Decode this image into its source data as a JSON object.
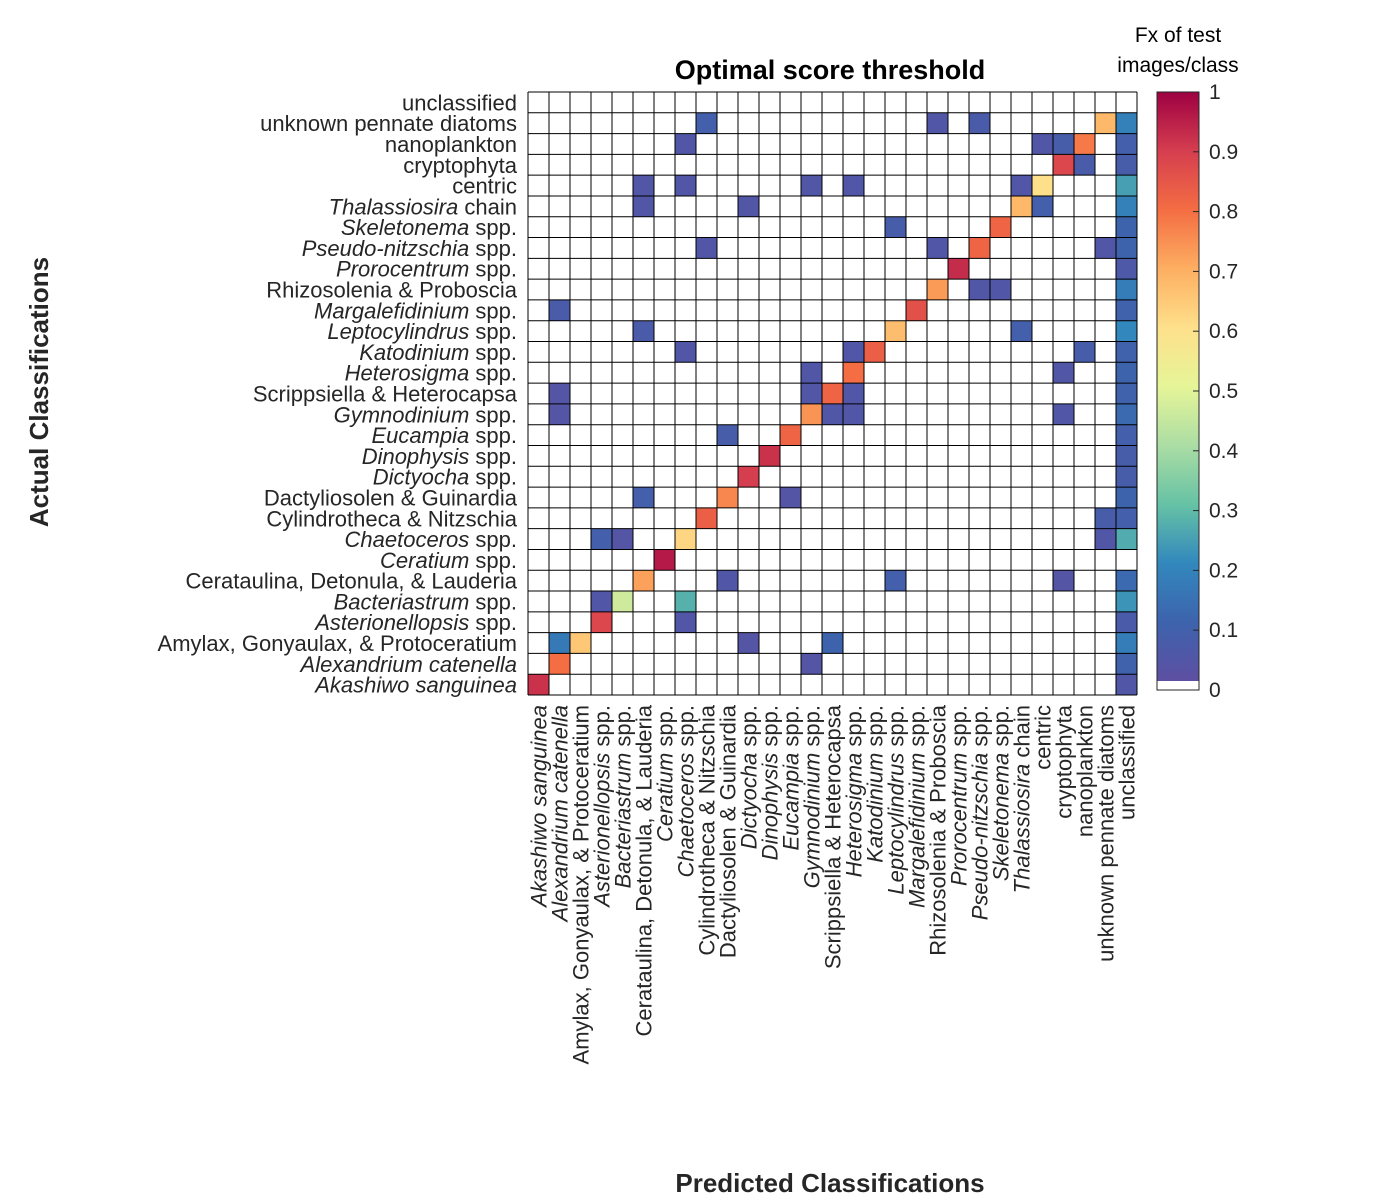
{
  "chart_data": {
    "type": "heatmap",
    "title": "Optimal score threshold",
    "xlabel": "Predicted Classifications",
    "ylabel": "Actual Classifications",
    "colorbar": {
      "title_lines": [
        "Fx of test",
        "images/class"
      ],
      "range": [
        0,
        1
      ],
      "ticks": [
        "0",
        "0.1",
        "0.2",
        "0.3",
        "0.4",
        "0.5",
        "0.6",
        "0.7",
        "0.8",
        "0.9",
        "1"
      ],
      "colormap": "spectral"
    },
    "classes": [
      {
        "pre": "",
        "it": "Akashiwo sanguinea",
        "post": ""
      },
      {
        "pre": "",
        "it": "Alexandrium catenella",
        "post": ""
      },
      {
        "pre": "Amylax, Gonyaulax, & Protoceratium",
        "it": "",
        "post": ""
      },
      {
        "pre": "",
        "it": "Asterionellopsis",
        "post": " spp."
      },
      {
        "pre": "",
        "it": "Bacteriastrum",
        "post": " spp."
      },
      {
        "pre": "Cerataulina, Detonula, & Lauderia",
        "it": "",
        "post": ""
      },
      {
        "pre": "",
        "it": "Ceratium",
        "post": " spp."
      },
      {
        "pre": "",
        "it": "Chaetoceros",
        "post": " spp."
      },
      {
        "pre": "Cylindrotheca & Nitzschia",
        "it": "",
        "post": ""
      },
      {
        "pre": "Dactyliosolen & Guinardia",
        "it": "",
        "post": ""
      },
      {
        "pre": "",
        "it": "Dictyocha",
        "post": " spp."
      },
      {
        "pre": "",
        "it": "Dinophysis",
        "post": " spp."
      },
      {
        "pre": "",
        "it": "Eucampia",
        "post": " spp."
      },
      {
        "pre": "",
        "it": "Gymnodinium",
        "post": " spp."
      },
      {
        "pre": "Scrippsiella & Heterocapsa",
        "it": "",
        "post": ""
      },
      {
        "pre": "",
        "it": "Heterosigma",
        "post": " spp."
      },
      {
        "pre": "",
        "it": "Katodinium",
        "post": " spp."
      },
      {
        "pre": "",
        "it": "Leptocylindrus",
        "post": " spp."
      },
      {
        "pre": "",
        "it": "Margalefidinium",
        "post": " spp."
      },
      {
        "pre": "Rhizosolenia & Proboscia",
        "it": "",
        "post": ""
      },
      {
        "pre": "",
        "it": "Prorocentrum",
        "post": " spp."
      },
      {
        "pre": "",
        "it": "Pseudo-nitzschia",
        "post": " spp."
      },
      {
        "pre": "",
        "it": "Skeletonema",
        "post": " spp."
      },
      {
        "pre": "",
        "it": "Thalassiosira",
        "post": " chain"
      },
      {
        "pre": "centric",
        "it": "",
        "post": ""
      },
      {
        "pre": "cryptophyta",
        "it": "",
        "post": ""
      },
      {
        "pre": "nanoplankton",
        "it": "",
        "post": ""
      },
      {
        "pre": "unknown pennate diatoms",
        "it": "",
        "post": ""
      },
      {
        "pre": "unclassified",
        "it": "",
        "post": ""
      }
    ],
    "note": "cells: [actual_index, predicted_index, fraction]; indices follow classes order; unlisted cells are 0",
    "cells": [
      [
        0,
        0,
        0.92
      ],
      [
        0,
        28,
        0.04
      ],
      [
        1,
        1,
        0.8
      ],
      [
        1,
        13,
        0.03
      ],
      [
        1,
        28,
        0.09
      ],
      [
        2,
        1,
        0.16
      ],
      [
        2,
        2,
        0.65
      ],
      [
        2,
        10,
        0.03
      ],
      [
        2,
        14,
        0.1
      ],
      [
        2,
        28,
        0.17
      ],
      [
        3,
        3,
        0.88
      ],
      [
        3,
        7,
        0.04
      ],
      [
        3,
        28,
        0.06
      ],
      [
        4,
        3,
        0.04
      ],
      [
        4,
        4,
        0.46
      ],
      [
        4,
        7,
        0.27
      ],
      [
        4,
        28,
        0.22
      ],
      [
        5,
        5,
        0.72
      ],
      [
        5,
        9,
        0.04
      ],
      [
        5,
        17,
        0.08
      ],
      [
        5,
        25,
        0.03
      ],
      [
        5,
        28,
        0.12
      ],
      [
        6,
        6,
        0.96
      ],
      [
        7,
        3,
        0.08
      ],
      [
        7,
        4,
        0.03
      ],
      [
        7,
        7,
        0.62
      ],
      [
        7,
        27,
        0.04
      ],
      [
        7,
        28,
        0.26
      ],
      [
        8,
        8,
        0.83
      ],
      [
        8,
        27,
        0.07
      ],
      [
        8,
        28,
        0.08
      ],
      [
        9,
        5,
        0.08
      ],
      [
        9,
        9,
        0.76
      ],
      [
        9,
        12,
        0.03
      ],
      [
        9,
        28,
        0.1
      ],
      [
        10,
        10,
        0.9
      ],
      [
        10,
        28,
        0.07
      ],
      [
        11,
        11,
        0.92
      ],
      [
        11,
        28,
        0.07
      ],
      [
        12,
        9,
        0.07
      ],
      [
        12,
        12,
        0.82
      ],
      [
        12,
        28,
        0.08
      ],
      [
        13,
        1,
        0.03
      ],
      [
        13,
        13,
        0.74
      ],
      [
        13,
        14,
        0.04
      ],
      [
        13,
        15,
        0.04
      ],
      [
        13,
        25,
        0.04
      ],
      [
        13,
        28,
        0.12
      ],
      [
        14,
        1,
        0.03
      ],
      [
        14,
        13,
        0.04
      ],
      [
        14,
        14,
        0.82
      ],
      [
        14,
        15,
        0.04
      ],
      [
        14,
        28,
        0.09
      ],
      [
        15,
        13,
        0.04
      ],
      [
        15,
        15,
        0.8
      ],
      [
        15,
        25,
        0.04
      ],
      [
        15,
        28,
        0.1
      ],
      [
        16,
        7,
        0.04
      ],
      [
        16,
        15,
        0.04
      ],
      [
        16,
        16,
        0.83
      ],
      [
        16,
        26,
        0.07
      ],
      [
        16,
        28,
        0.09
      ],
      [
        17,
        5,
        0.06
      ],
      [
        17,
        17,
        0.67
      ],
      [
        17,
        23,
        0.08
      ],
      [
        17,
        28,
        0.2
      ],
      [
        18,
        1,
        0.06
      ],
      [
        18,
        18,
        0.86
      ],
      [
        18,
        28,
        0.09
      ],
      [
        19,
        19,
        0.73
      ],
      [
        19,
        21,
        0.04
      ],
      [
        19,
        22,
        0.04
      ],
      [
        19,
        28,
        0.17
      ],
      [
        20,
        20,
        0.93
      ],
      [
        20,
        28,
        0.05
      ],
      [
        21,
        8,
        0.04
      ],
      [
        21,
        19,
        0.04
      ],
      [
        21,
        21,
        0.82
      ],
      [
        21,
        27,
        0.04
      ],
      [
        21,
        28,
        0.1
      ],
      [
        22,
        17,
        0.07
      ],
      [
        22,
        22,
        0.82
      ],
      [
        22,
        28,
        0.1
      ],
      [
        23,
        5,
        0.04
      ],
      [
        23,
        10,
        0.04
      ],
      [
        23,
        23,
        0.68
      ],
      [
        23,
        24,
        0.08
      ],
      [
        23,
        28,
        0.18
      ],
      [
        24,
        5,
        0.04
      ],
      [
        24,
        7,
        0.04
      ],
      [
        24,
        13,
        0.04
      ],
      [
        24,
        15,
        0.04
      ],
      [
        24,
        23,
        0.04
      ],
      [
        24,
        24,
        0.6
      ],
      [
        24,
        28,
        0.24
      ],
      [
        25,
        25,
        0.88
      ],
      [
        25,
        26,
        0.06
      ],
      [
        25,
        28,
        0.07
      ],
      [
        26,
        7,
        0.04
      ],
      [
        26,
        24,
        0.04
      ],
      [
        26,
        25,
        0.07
      ],
      [
        26,
        26,
        0.78
      ],
      [
        26,
        28,
        0.08
      ],
      [
        27,
        8,
        0.08
      ],
      [
        27,
        19,
        0.04
      ],
      [
        27,
        21,
        0.06
      ],
      [
        27,
        27,
        0.68
      ],
      [
        27,
        28,
        0.18
      ]
    ]
  }
}
